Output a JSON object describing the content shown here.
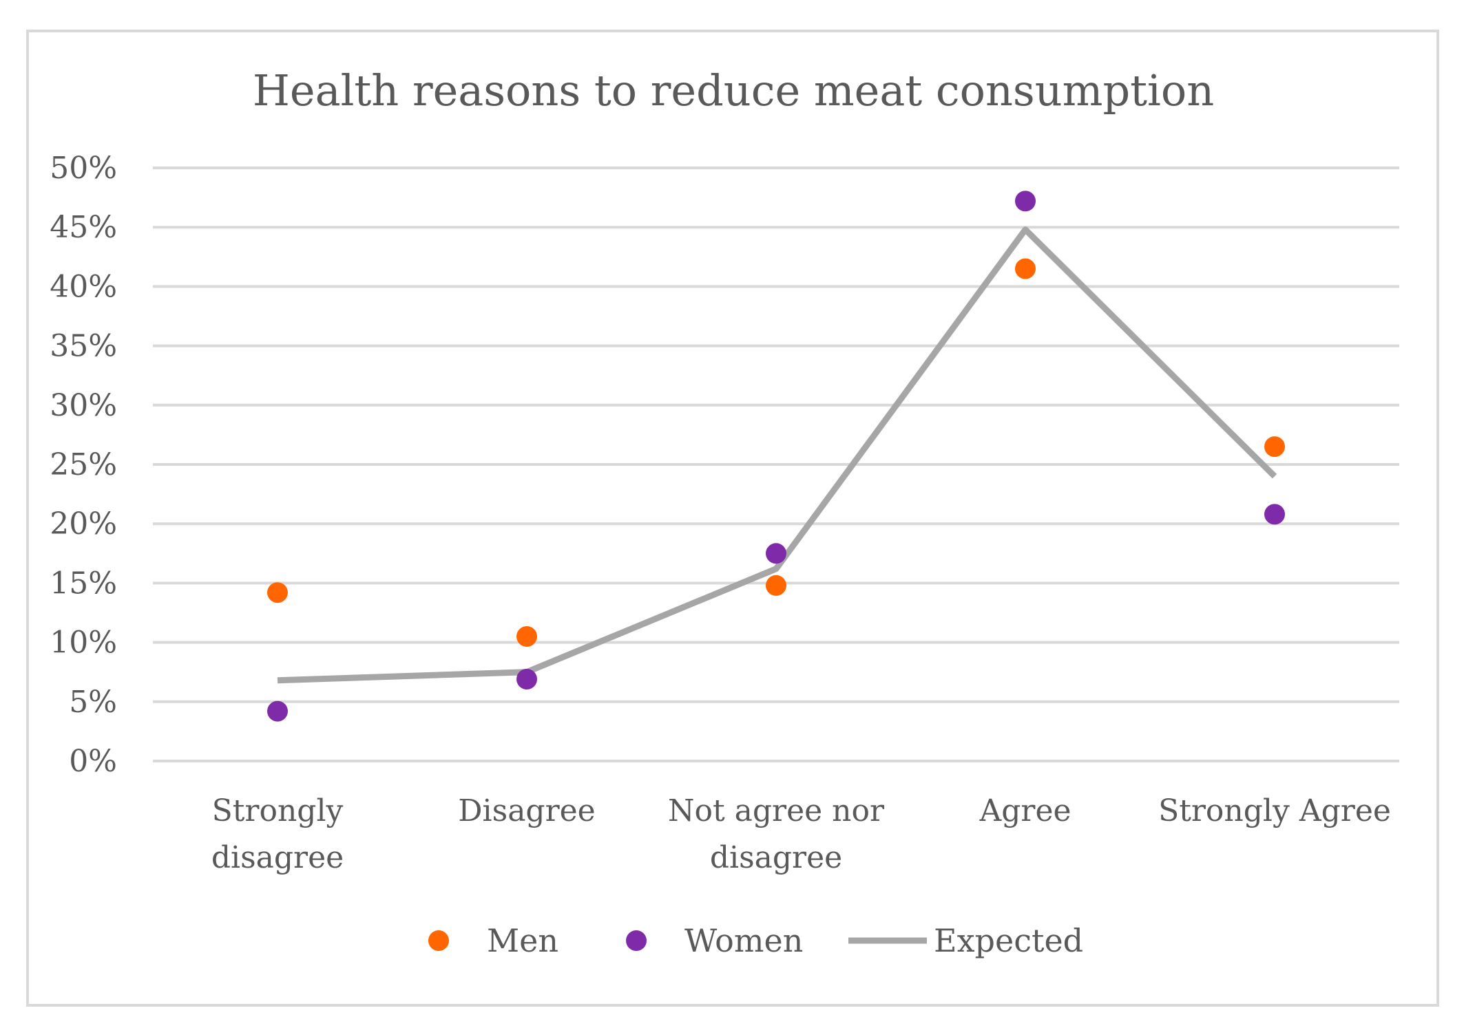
{
  "chart_data": {
    "type": "scatter",
    "title": "Health reasons to reduce meat consumption",
    "xlabel": "",
    "ylabel": "",
    "ylim": [
      0,
      50
    ],
    "yticks": [
      0,
      5,
      10,
      15,
      20,
      25,
      30,
      35,
      40,
      45,
      50
    ],
    "ytick_labels": [
      "0%",
      "5%",
      "10%",
      "15%",
      "20%",
      "25%",
      "30%",
      "35%",
      "40%",
      "45%",
      "50%"
    ],
    "categories": [
      [
        "Strongly",
        "disagree"
      ],
      [
        "Disagree"
      ],
      [
        "Not agree nor",
        "disagree"
      ],
      [
        "Agree"
      ],
      [
        "Strongly Agree"
      ]
    ],
    "grid": true,
    "legend_position": "bottom",
    "series": [
      {
        "name": "Men",
        "kind": "markers",
        "color": "#ff6600",
        "values": [
          14.2,
          10.5,
          14.8,
          41.5,
          26.5
        ]
      },
      {
        "name": "Women",
        "kind": "markers",
        "color": "#7f2aa8",
        "values": [
          4.2,
          6.9,
          17.5,
          47.2,
          20.8
        ]
      },
      {
        "name": "Expected",
        "kind": "line",
        "color": "#a6a6a6",
        "values": [
          6.8,
          7.5,
          16.2,
          44.8,
          24.0
        ]
      }
    ]
  }
}
